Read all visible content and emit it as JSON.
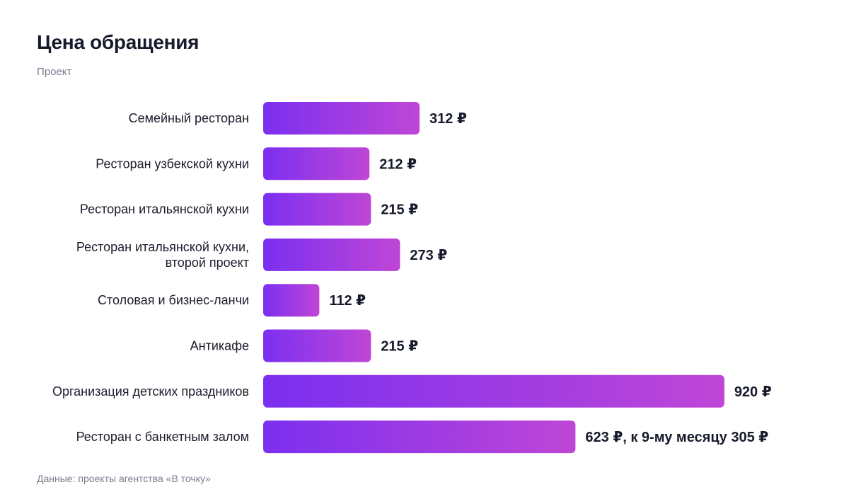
{
  "title": "Цена обращения",
  "subtitle": "Проект",
  "footer": "Данные: проекты агентства «В точку»",
  "colors": {
    "bar_start": "#7b2ff0",
    "bar_end": "#bf46d6",
    "text": "#1b1d2b",
    "muted": "#7a7d8c"
  },
  "chart_data": {
    "type": "bar",
    "orientation": "horizontal",
    "title": "Цена обращения",
    "subtitle": "Проект",
    "unit": "₽",
    "categories": [
      "Семейный ресторан",
      "Ресторан узбекской кухни",
      "Ресторан итальянской кухни",
      "Ресторан итальянской кухни, второй проект",
      "Столовая и бизнес-ланчи",
      "Антикафе",
      "Организация детских праздников",
      "Ресторан с банкетным залом"
    ],
    "category_lines": [
      [
        "Семейный ресторан"
      ],
      [
        "Ресторан узбекской кухни"
      ],
      [
        "Ресторан итальянской кухни"
      ],
      [
        "Ресторан итальянской кухни,",
        "второй проект"
      ],
      [
        "Столовая и бизнес-ланчи"
      ],
      [
        "Антикафе"
      ],
      [
        "Организация детских праздников"
      ],
      [
        "Ресторан с банкетным залом"
      ]
    ],
    "values": [
      312,
      212,
      215,
      273,
      112,
      215,
      920,
      623
    ],
    "value_labels": [
      "312 ₽",
      "212 ₽",
      "215 ₽",
      "273 ₽",
      "112 ₽",
      "215 ₽",
      "920 ₽",
      "623 ₽, к 9-му месяцу 305 ₽"
    ],
    "grid": false,
    "legend": "none"
  }
}
